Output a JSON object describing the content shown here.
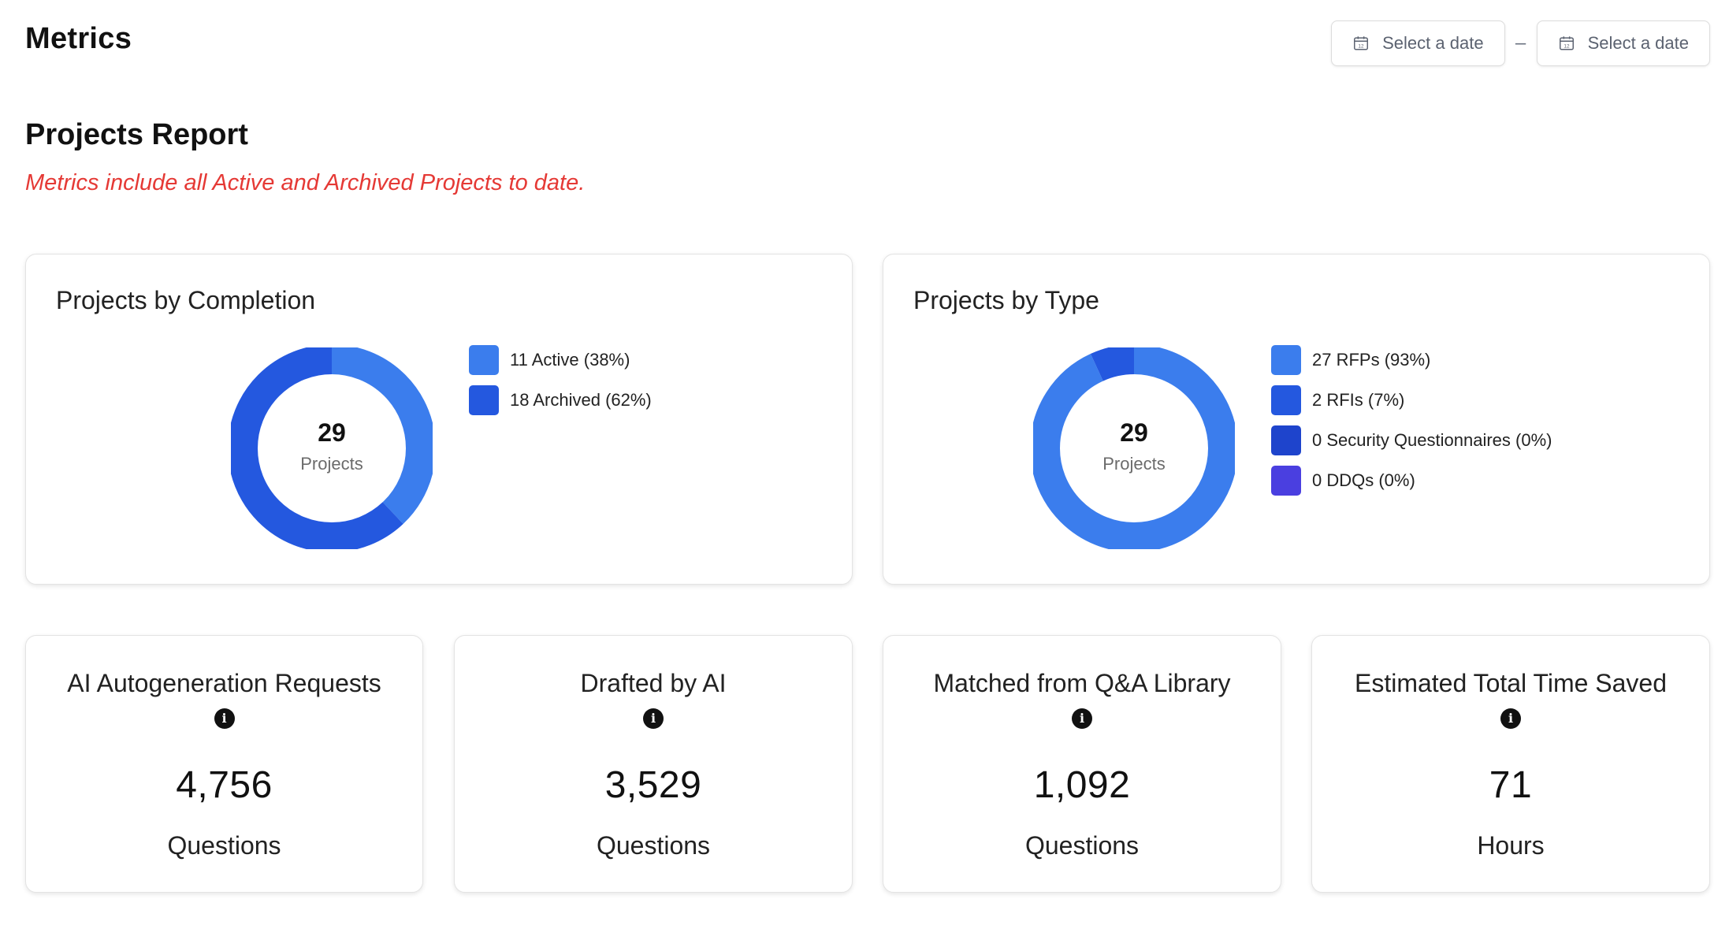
{
  "page": {
    "title": "Metrics",
    "date_range": {
      "start_placeholder": "Select a date",
      "separator": "–",
      "end_placeholder": "Select a date",
      "icon": "calendar-icon"
    }
  },
  "report": {
    "title": "Projects Report",
    "note": "Metrics include all Active and Archived Projects to date.",
    "note_color": "#e53935"
  },
  "completion": {
    "title": "Projects by Completion",
    "total": "29",
    "unit": "Projects",
    "legend": [
      {
        "label": "11 Active (38%)",
        "color": "#3b7ded"
      },
      {
        "label": "18 Archived (62%)",
        "color": "#2458df"
      }
    ]
  },
  "type": {
    "title": "Projects by Type",
    "total": "29",
    "unit": "Projects",
    "legend": [
      {
        "label": "27 RFPs (93%)",
        "color": "#3b7ded"
      },
      {
        "label": "2 RFIs (7%)",
        "color": "#2458df"
      },
      {
        "label": "0 Security Questionnaires (0%)",
        "color": "#1e44cc"
      },
      {
        "label": "0 DDQs (0%)",
        "color": "#4a3fe0"
      }
    ]
  },
  "stats": [
    {
      "title": "AI Autogeneration Requests",
      "value": "4,756",
      "unit": "Questions",
      "icon": "info-icon"
    },
    {
      "title": "Drafted by AI",
      "value": "3,529",
      "unit": "Questions",
      "icon": "info-icon"
    },
    {
      "title": "Matched from Q&A Library",
      "value": "1,092",
      "unit": "Questions",
      "icon": "info-icon"
    },
    {
      "title": "Estimated Total Time Saved",
      "value": "71",
      "unit": "Hours",
      "icon": "info-icon"
    }
  ],
  "chart_data": [
    {
      "type": "pie",
      "title": "Projects by Completion",
      "categories": [
        "Active",
        "Archived"
      ],
      "values": [
        11,
        18
      ],
      "colors": [
        "#3b7ded",
        "#2458df"
      ],
      "donut": true,
      "legend_position": "right"
    },
    {
      "type": "pie",
      "title": "Projects by Type",
      "categories": [
        "RFPs",
        "RFIs",
        "Security Questionnaires",
        "DDQs"
      ],
      "values": [
        27,
        2,
        0,
        0
      ],
      "colors": [
        "#3b7ded",
        "#2458df",
        "#1e44cc",
        "#4a3fe0"
      ],
      "donut": true,
      "legend_position": "right"
    }
  ]
}
